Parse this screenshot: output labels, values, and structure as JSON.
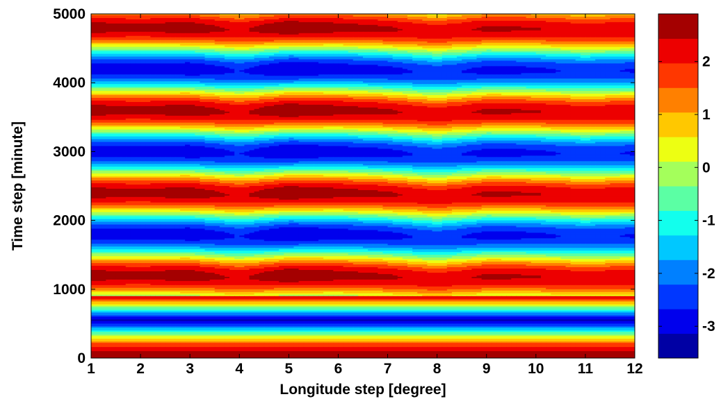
{
  "chart_data": {
    "type": "heatmap",
    "subtype": "filled-contour",
    "colormap": "jet",
    "xlabel": "Longitude step [degree]",
    "ylabel": "Time step [minute]",
    "xlim": [
      1,
      12
    ],
    "ylim": [
      0,
      5000
    ],
    "xticks": [
      1,
      2,
      3,
      4,
      5,
      6,
      7,
      8,
      9,
      10,
      11,
      12
    ],
    "yticks": [
      0,
      1000,
      2000,
      3000,
      4000,
      5000
    ],
    "colorbar": {
      "range": [
        -3.6,
        2.9
      ],
      "ticks": [
        -3,
        -2,
        -1,
        0,
        1,
        2
      ],
      "levels": 14
    },
    "field": {
      "description_of_values": "Oscillating field in time; amplitude grows with a crest near longitude 5 and dips near longitudes 4 and 8",
      "period_minutes": 1200,
      "initial_transient_until": 900,
      "x_modulation": {
        "x": [
          1,
          2,
          3,
          4,
          5,
          6,
          7,
          8,
          9,
          10,
          11,
          12
        ],
        "amplitude": [
          3.0,
          2.9,
          3.05,
          2.7,
          3.15,
          2.95,
          2.85,
          2.6,
          2.85,
          2.8,
          2.65,
          2.75
        ],
        "phase_shift_minutes": [
          0,
          0,
          0,
          35,
          0,
          0,
          20,
          60,
          15,
          20,
          40,
          25
        ]
      }
    }
  }
}
